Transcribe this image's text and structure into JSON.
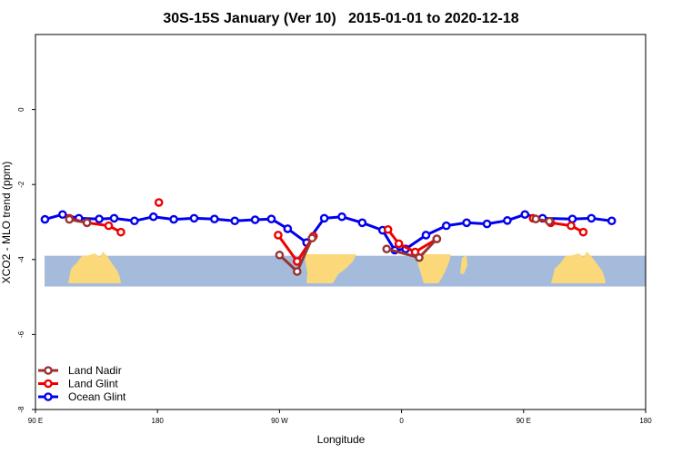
{
  "chart_data": {
    "type": "line",
    "title": "30S-15S January (Ver 10)   2015-01-01 to 2020-12-18",
    "xlabel": "Longitude",
    "ylabel": "XCO2 - MLO trend (ppm)",
    "xlim": [
      90,
      540
    ],
    "ylim": [
      -8,
      2
    ],
    "x_ticks": [
      {
        "value": 90,
        "label": "90 E"
      },
      {
        "value": 180,
        "label": "180"
      },
      {
        "value": 270,
        "label": "90 W"
      },
      {
        "value": 360,
        "label": "0"
      },
      {
        "value": 450,
        "label": "90 E"
      },
      {
        "value": 540,
        "label": "180"
      }
    ],
    "y_ticks": [
      {
        "value": 0,
        "label": "0"
      },
      {
        "value": -2,
        "label": "-2"
      },
      {
        "value": -4,
        "label": "-4"
      },
      {
        "value": -6,
        "label": "-6"
      },
      {
        "value": -8,
        "label": "-8"
      }
    ],
    "legend_position": "bottom-left",
    "map_band": {
      "y_range": [
        -4.72,
        -3.9
      ],
      "ocean_color": "#a5bbdc",
      "land_color": "#fbd97a"
    },
    "series": [
      {
        "name": "Ocean Glint",
        "color": "#0000ee",
        "segments": [
          [
            [
              97,
              -2.93
            ],
            [
              110,
              -2.8
            ],
            [
              122,
              -2.9
            ],
            [
              137,
              -2.92
            ],
            [
              148,
              -2.9
            ],
            [
              163,
              -2.97
            ],
            [
              177,
              -2.86
            ],
            [
              192,
              -2.93
            ],
            [
              207,
              -2.9
            ],
            [
              222,
              -2.92
            ],
            [
              237,
              -2.97
            ],
            [
              252,
              -2.94
            ],
            [
              264,
              -2.92
            ],
            [
              276,
              -3.18
            ],
            [
              290,
              -3.55
            ],
            [
              303,
              -2.9
            ],
            [
              316,
              -2.86
            ],
            [
              331,
              -3.02
            ],
            [
              346,
              -3.22
            ],
            [
              355,
              -3.75
            ],
            [
              363,
              -3.72
            ],
            [
              378,
              -3.35
            ],
            [
              393,
              -3.1
            ],
            [
              408,
              -3.02
            ],
            [
              423,
              -3.05
            ],
            [
              438,
              -2.96
            ],
            [
              451,
              -2.8
            ],
            [
              464,
              -2.9
            ],
            [
              486,
              -2.92
            ],
            [
              500,
              -2.9
            ],
            [
              515,
              -2.97
            ]
          ]
        ]
      },
      {
        "name": "Land Glint",
        "color": "#ee0000",
        "segments": [
          [
            [
              115,
              -2.9
            ],
            [
              128,
              -3.02
            ],
            [
              144,
              -3.1
            ],
            [
              153,
              -3.27
            ]
          ],
          [
            [
              181,
              -2.48
            ]
          ],
          [
            [
              269,
              -3.35
            ],
            [
              283,
              -4.05
            ],
            [
              295,
              -3.38
            ]
          ],
          [
            [
              350,
              -3.2
            ],
            [
              358,
              -3.58
            ],
            [
              370,
              -3.8
            ],
            [
              386,
              -3.45
            ]
          ],
          [
            [
              457,
              -2.9
            ],
            [
              470,
              -3.02
            ],
            [
              485,
              -3.1
            ],
            [
              494,
              -3.27
            ]
          ]
        ]
      },
      {
        "name": "Land Nadir",
        "color": "#993333",
        "segments": [
          [
            [
              115,
              -2.93
            ],
            [
              128,
              -3.02
            ]
          ],
          [
            [
              270,
              -3.88
            ],
            [
              283,
              -4.32
            ],
            [
              294,
              -3.43
            ]
          ],
          [
            [
              349,
              -3.72
            ],
            [
              373,
              -3.95
            ],
            [
              386,
              -3.45
            ]
          ],
          [
            [
              459,
              -2.92
            ],
            [
              469,
              -2.98
            ]
          ]
        ]
      }
    ]
  }
}
